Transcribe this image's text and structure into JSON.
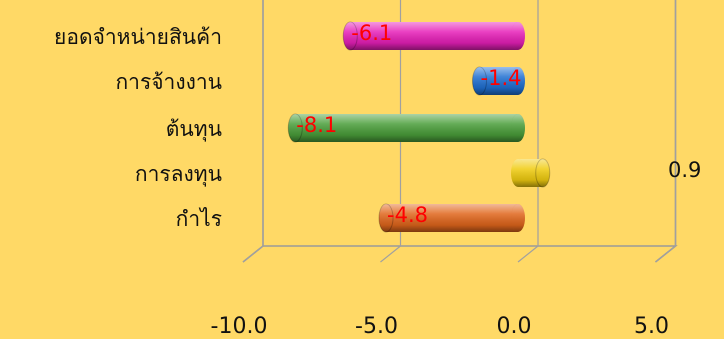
{
  "chart_data": {
    "type": "bar",
    "orientation": "horizontal",
    "style": "3d-cylinder",
    "categories": [
      "ยอดจำหน่ายสินค้า",
      "การจ้างงาน",
      "ต้นทุน",
      "การลงทุน",
      "กำไร"
    ],
    "values": [
      -6.1,
      -1.4,
      -8.1,
      0.9,
      -4.8
    ],
    "data_labels": [
      "-6.1",
      "-1.4",
      "-8.1",
      "0.9",
      "-4.8"
    ],
    "bar_colors": [
      "#e61fb8",
      "#1f6fd1",
      "#4a9e3a",
      "#f0cc10",
      "#e0661c"
    ],
    "x_ticks": [
      "-10.0",
      "-5.0",
      "0.0",
      "5.0"
    ],
    "xlim": [
      -10,
      5
    ],
    "grid": true,
    "legend": "none",
    "negative_label_color": "#ff0000",
    "positive_label_color": "#111111"
  }
}
